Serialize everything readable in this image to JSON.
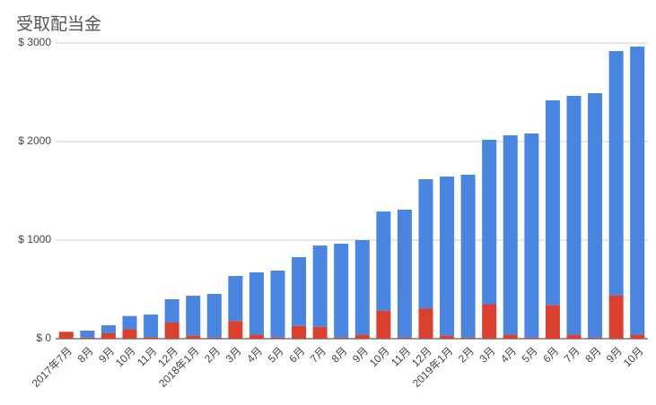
{
  "chart_data": {
    "type": "stacked_bar",
    "title": "受取配当金",
    "categories": [
      "2017年7月",
      "8月",
      "9月",
      "10月",
      "11月",
      "12月",
      "2018年1月",
      "2月",
      "3月",
      "4月",
      "5月",
      "6月",
      "7月",
      "8月",
      "9月",
      "10月",
      "11月",
      "12月",
      "2019年1月",
      "2月",
      "3月",
      "4月",
      "5月",
      "6月",
      "7月",
      "8月",
      "9月",
      "10月"
    ],
    "series": [
      {
        "color": "#d9402f",
        "values": [
          70,
          10,
          55,
          95,
          15,
          164,
          30,
          10,
          180,
          40,
          10,
          130,
          120,
          10,
          40,
          285,
          10,
          305,
          30,
          10,
          350,
          40,
          10,
          340,
          40,
          10,
          440,
          40
        ]
      },
      {
        "color": "#4a86e0",
        "values": [
          0,
          72,
          81,
          135,
          230,
          236,
          406,
          445,
          456,
          633,
          681,
          697,
          825,
          954,
          960,
          1005,
          1299,
          1313,
          1615,
          1654,
          1668,
          2024,
          2072,
          2078,
          2424,
          2481,
          2478,
          2924
        ]
      }
    ],
    "ylim": [
      0,
      3000
    ],
    "yticks": [
      {
        "value": 0,
        "label": "$ 0"
      },
      {
        "value": 1000,
        "label": "$ 1000"
      },
      {
        "value": 2000,
        "label": "$ 2000"
      },
      {
        "value": 3000,
        "label": "$ 3000"
      }
    ],
    "grid": true
  }
}
